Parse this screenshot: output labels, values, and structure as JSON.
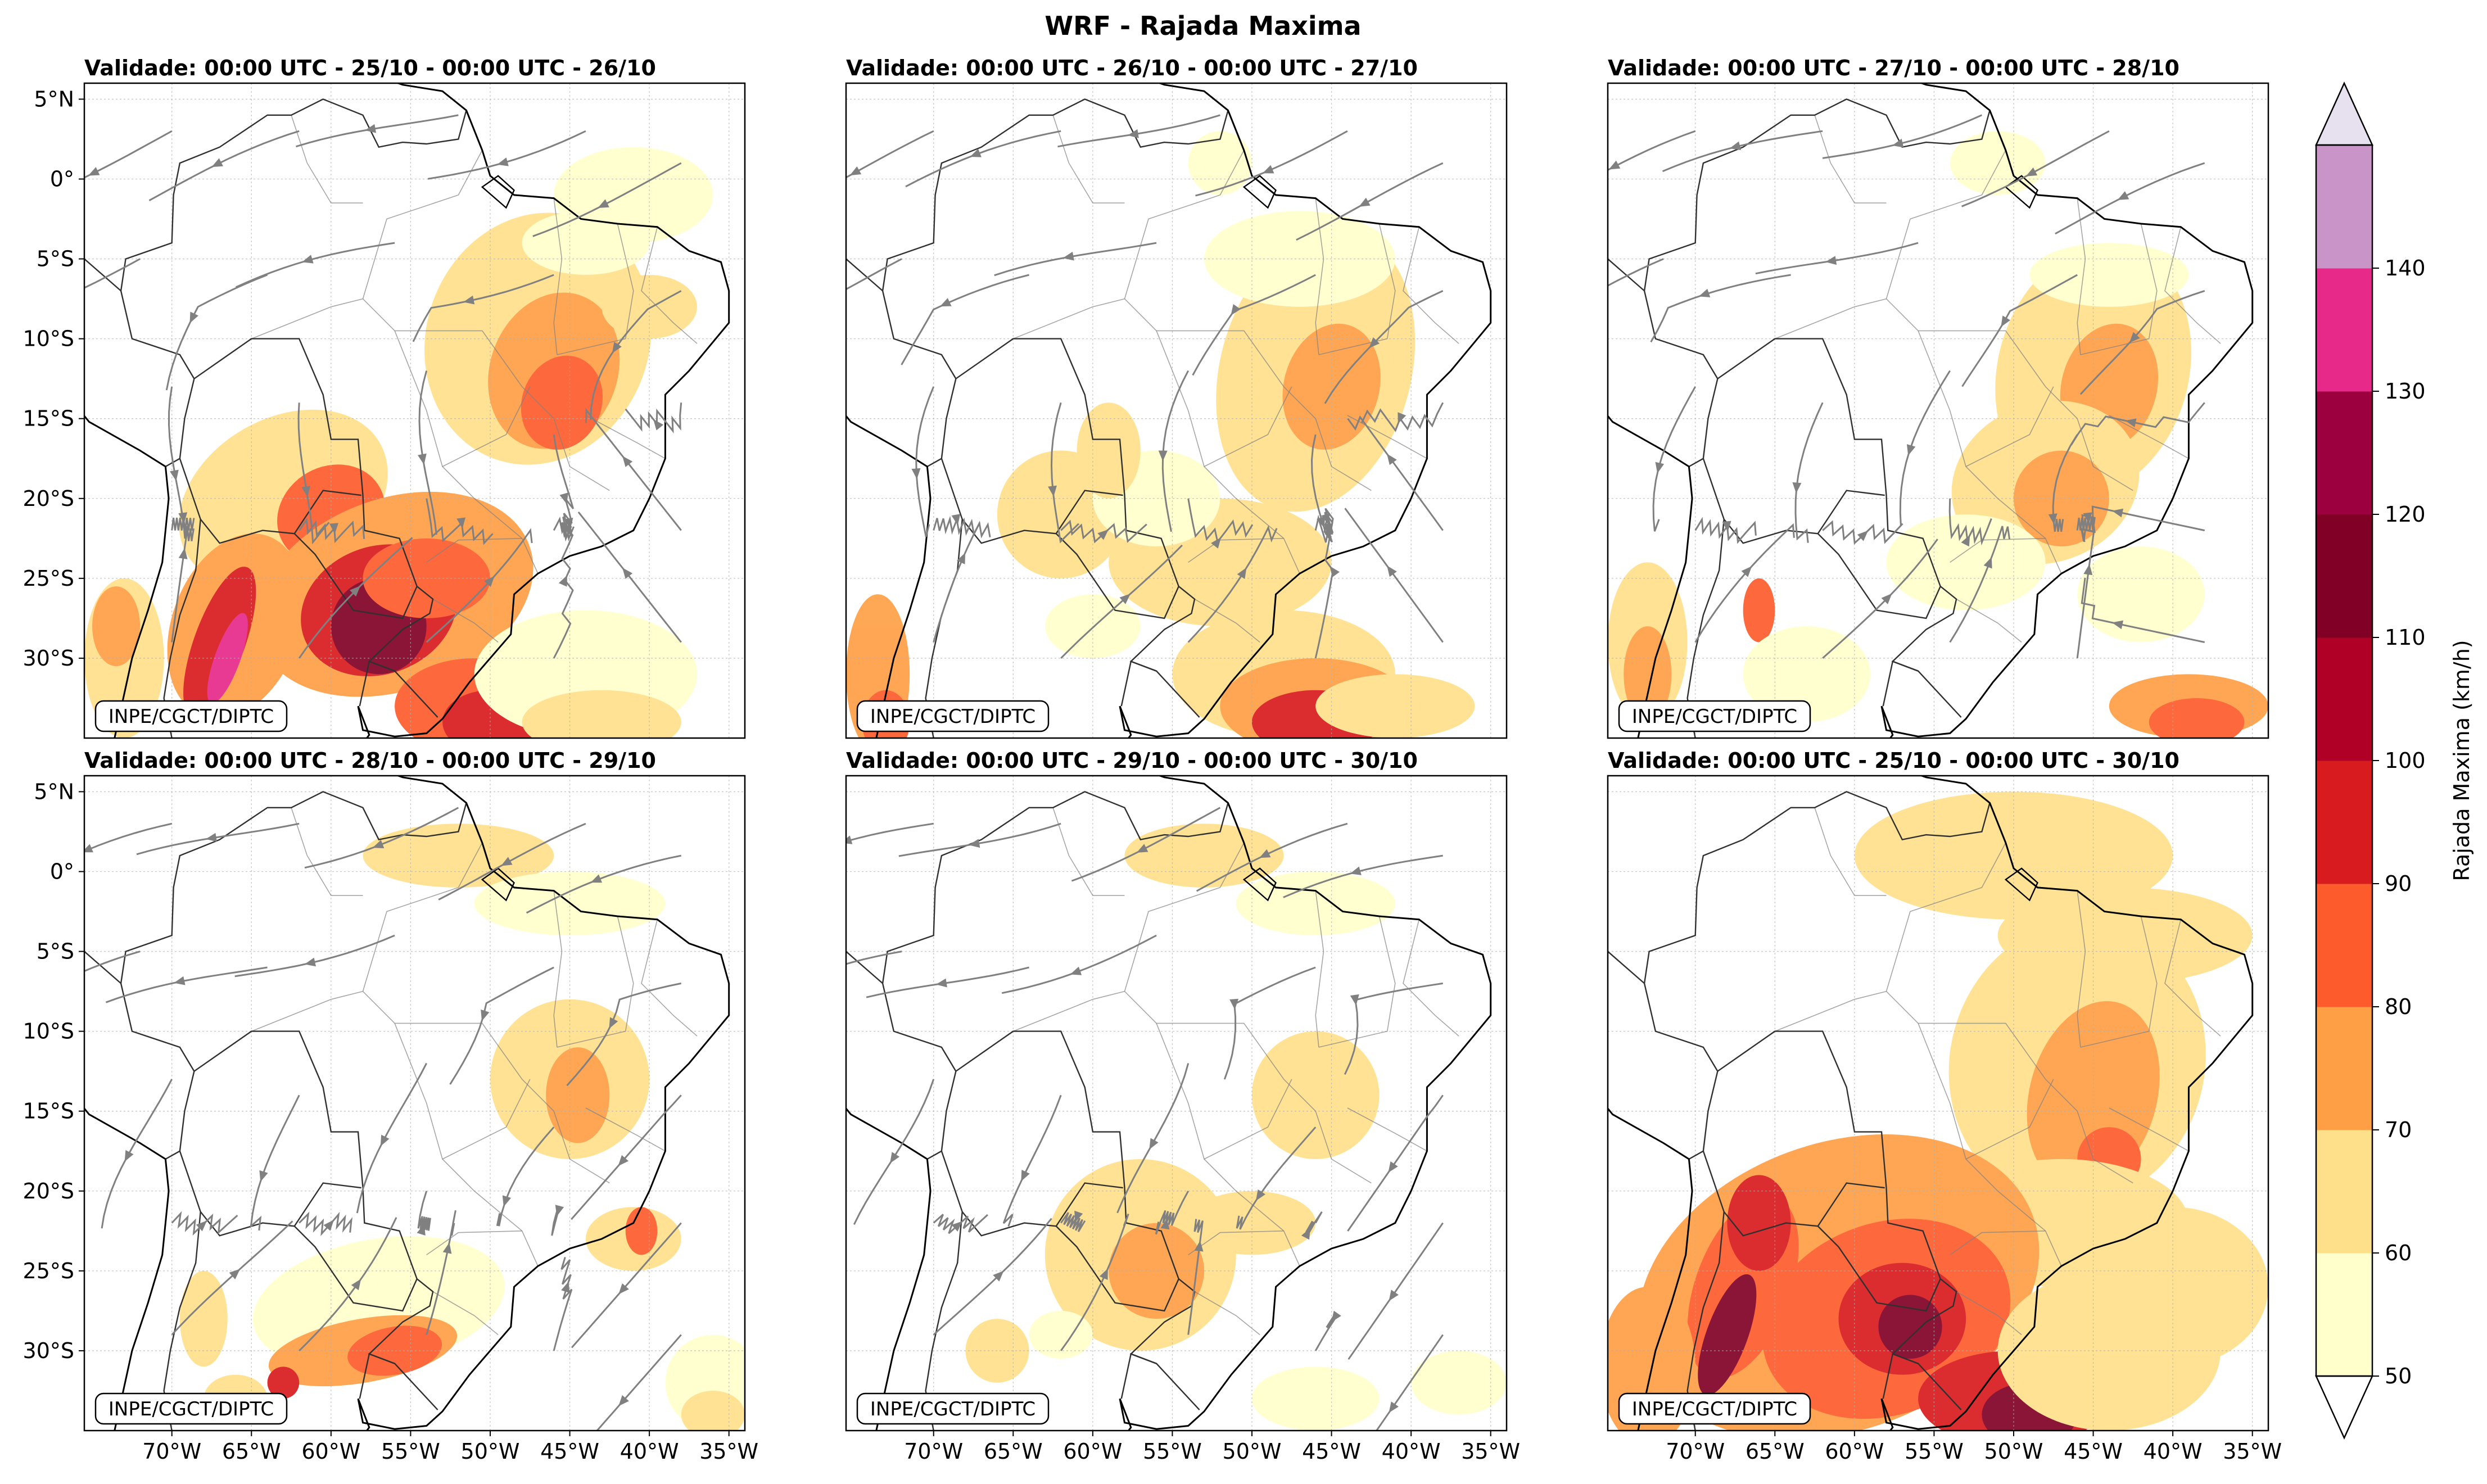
{
  "title": "WRF - Rajada Maxima",
  "credit": "INPE/CGCT/DIPTC",
  "panels": [
    {
      "title": "Validade: 00:00 UTC - 25/10 - 00:00 UTC - 26/10",
      "show_lat": true,
      "show_lon": false
    },
    {
      "title": "Validade: 00:00 UTC - 26/10 - 00:00 UTC - 27/10",
      "show_lat": false,
      "show_lon": false
    },
    {
      "title": "Validade: 00:00 UTC - 27/10 - 00:00 UTC - 28/10",
      "show_lat": false,
      "show_lon": false
    },
    {
      "title": "Validade: 00:00 UTC - 28/10 - 00:00 UTC - 29/10",
      "show_lat": true,
      "show_lon": true
    },
    {
      "title": "Validade: 00:00 UTC - 29/10 - 00:00 UTC - 30/10",
      "show_lat": false,
      "show_lon": true
    },
    {
      "title": "Validade: 00:00 UTC - 25/10 - 00:00 UTC - 30/10",
      "show_lat": false,
      "show_lon": true
    }
  ],
  "map": {
    "lon_range": [
      -75.5,
      -34.0
    ],
    "lat_range": [
      -35.0,
      6.0
    ],
    "lat_ticks": [
      {
        "value": 5,
        "label": "5°N"
      },
      {
        "value": 0,
        "label": "0°"
      },
      {
        "value": -5,
        "label": "5°S"
      },
      {
        "value": -10,
        "label": "10°S"
      },
      {
        "value": -15,
        "label": "15°S"
      },
      {
        "value": -20,
        "label": "20°S"
      },
      {
        "value": -25,
        "label": "25°S"
      },
      {
        "value": -30,
        "label": "30°S"
      }
    ],
    "lon_ticks": [
      {
        "value": -70,
        "label": "70°W"
      },
      {
        "value": -65,
        "label": "65°W"
      },
      {
        "value": -60,
        "label": "60°W"
      },
      {
        "value": -55,
        "label": "55°W"
      },
      {
        "value": -50,
        "label": "50°W"
      },
      {
        "value": -45,
        "label": "45°W"
      },
      {
        "value": -40,
        "label": "40°W"
      },
      {
        "value": -35,
        "label": "35°W"
      }
    ],
    "grid": true
  },
  "colorbar": {
    "label": "Rajada Maxima (km/h)",
    "ticks": [
      "50",
      "60",
      "70",
      "80",
      "90",
      "100",
      "110",
      "120",
      "130",
      "140"
    ],
    "colors": [
      "#ffffcc",
      "#ffe08a",
      "#fe9f45",
      "#fd5b2c",
      "#d81b1e",
      "#b10026",
      "#800026",
      "#9c003f",
      "#e7298a",
      "#c994c7"
    ],
    "under_color": "#ffffff",
    "over_color": "#e7e1ef",
    "extend": "both"
  },
  "colors": {
    "streamline": "#808080",
    "coastline": "#000000",
    "border": "#808080"
  }
}
